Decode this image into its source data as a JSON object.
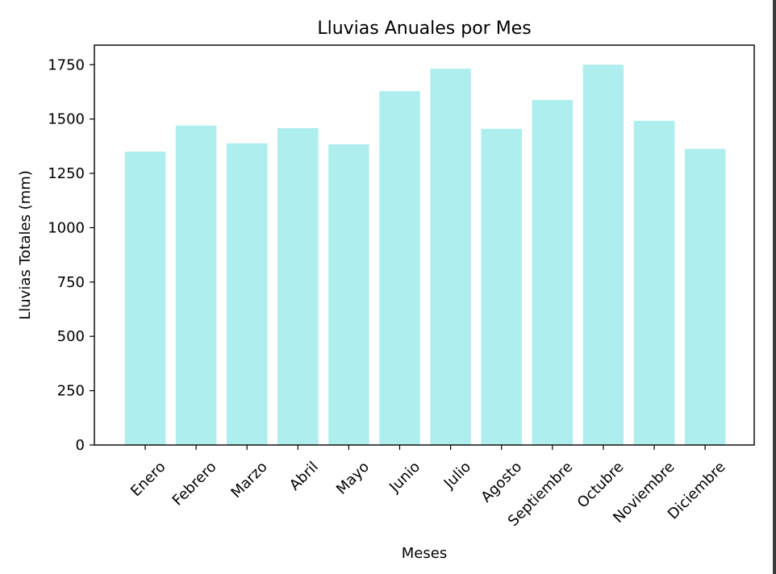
{
  "chart_data": {
    "type": "bar",
    "title": "Lluvias Anuales por Mes",
    "xlabel": "Meses",
    "ylabel": "Lluvias Totales (mm)",
    "categories": [
      "Enero",
      "Febrero",
      "Marzo",
      "Abril",
      "Mayo",
      "Junio",
      "Julio",
      "Agosto",
      "Septiembre",
      "Octubre",
      "Noviembre",
      "Diciembre"
    ],
    "values": [
      1350,
      1470,
      1388,
      1458,
      1384,
      1628,
      1732,
      1455,
      1588,
      1750,
      1492,
      1363
    ],
    "ylim": [
      0,
      1840
    ],
    "yticks": [
      0,
      250,
      500,
      750,
      1000,
      1250,
      1500,
      1750
    ],
    "ytick_labels": [
      "0",
      "250",
      "500",
      "750",
      "1000",
      "1250",
      "1500",
      "1750"
    ],
    "bar_color": "#afeeee",
    "grid": false
  }
}
